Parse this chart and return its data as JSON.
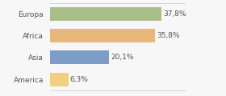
{
  "categories": [
    "Europa",
    "Africa",
    "Asia",
    "America"
  ],
  "values": [
    37.8,
    35.8,
    20.1,
    6.3
  ],
  "labels": [
    "37,8%",
    "35,8%",
    "20,1%",
    "6,3%"
  ],
  "bar_colors": [
    "#a8bf8a",
    "#e8b87a",
    "#7b9dc7",
    "#f0d080"
  ],
  "background_color": "#f7f7f7",
  "xlim": [
    0,
    46
  ],
  "label_fontsize": 6.5,
  "category_fontsize": 6.5,
  "bar_height": 0.62
}
